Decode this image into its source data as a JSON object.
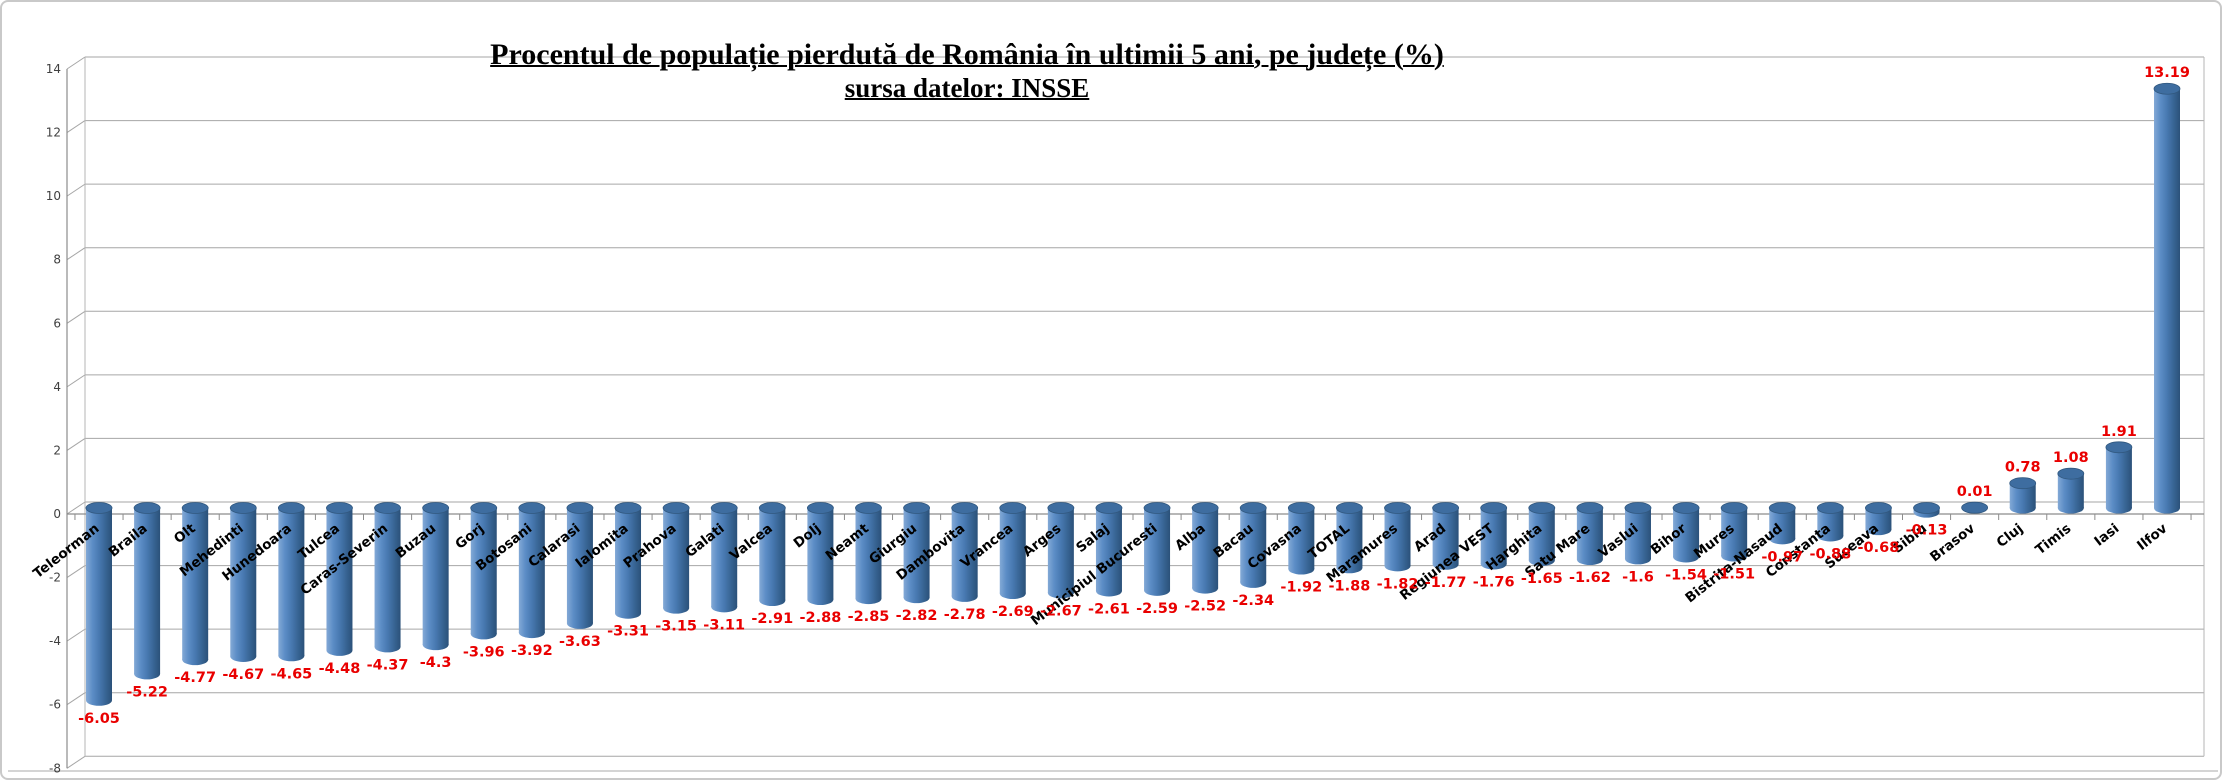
{
  "chart_data": {
    "type": "bar",
    "subtype": "3d-cylinder-vertical",
    "title": "Procentul de populație pierdută de România în ultimii 5 ani, pe județe (%)",
    "subtitle": "sursa datelor: INSSE",
    "categories": [
      "Teleorman",
      "Braila",
      "Olt",
      "Mehedinti",
      "Hunedoara",
      "Tulcea",
      "Caras-Severin",
      "Buzau",
      "Gorj",
      "Botosani",
      "Calarasi",
      "Ialomita",
      "Prahova",
      "Galati",
      "Valcea",
      "Dolj",
      "Neamt",
      "Giurgiu",
      "Dambovita",
      "Vrancea",
      "Arges",
      "Salaj",
      "Municipiul Bucuresti",
      "Alba",
      "Bacau",
      "Covasna",
      "TOTAL",
      "Maramures",
      "Arad",
      "Regiunea VEST",
      "Harghita",
      "Satu Mare",
      "Vaslui",
      "Bihor",
      "Mures",
      "Bistrita-Nasaud",
      "Constanta",
      "Suceava",
      "Sibiu",
      "Brasov",
      "Cluj",
      "Timis",
      "Iasi",
      "Ilfov"
    ],
    "values": [
      -6.05,
      -5.22,
      -4.77,
      -4.67,
      -4.65,
      -4.48,
      -4.37,
      -4.3,
      -3.96,
      -3.92,
      -3.63,
      -3.31,
      -3.15,
      -3.11,
      -2.91,
      -2.88,
      -2.85,
      -2.82,
      -2.78,
      -2.69,
      -2.67,
      -2.61,
      -2.59,
      -2.52,
      -2.34,
      -1.92,
      -1.88,
      -1.82,
      -1.77,
      -1.76,
      -1.65,
      -1.62,
      -1.6,
      -1.54,
      -1.51,
      -0.97,
      -0.88,
      -0.68,
      -0.13,
      0.01,
      0.78,
      1.08,
      1.91,
      13.19
    ],
    "xlabel": "",
    "ylabel": "",
    "ylim": [
      -8,
      14
    ],
    "ytick_step": 2,
    "yticks": [
      -8,
      -6,
      -4,
      -2,
      0,
      2,
      4,
      6,
      8,
      10,
      12,
      14
    ],
    "grid": true,
    "legend": false,
    "value_labels": true,
    "colors": {
      "bar_body_light": "#83A9D6",
      "bar_body_mid": "#4879B1",
      "bar_body_dark": "#2B5179",
      "bar_cap": "#3E6DA0",
      "bar_cap_stroke": "#31587F",
      "value_label": "#E90000",
      "category_label": "#000000",
      "ytick_label": "#404040",
      "gridline": "#A6A6A6",
      "axis": "#8C8C8C",
      "wall": "#B5B5B5",
      "frame_bottom": "#AAAAAA"
    }
  }
}
